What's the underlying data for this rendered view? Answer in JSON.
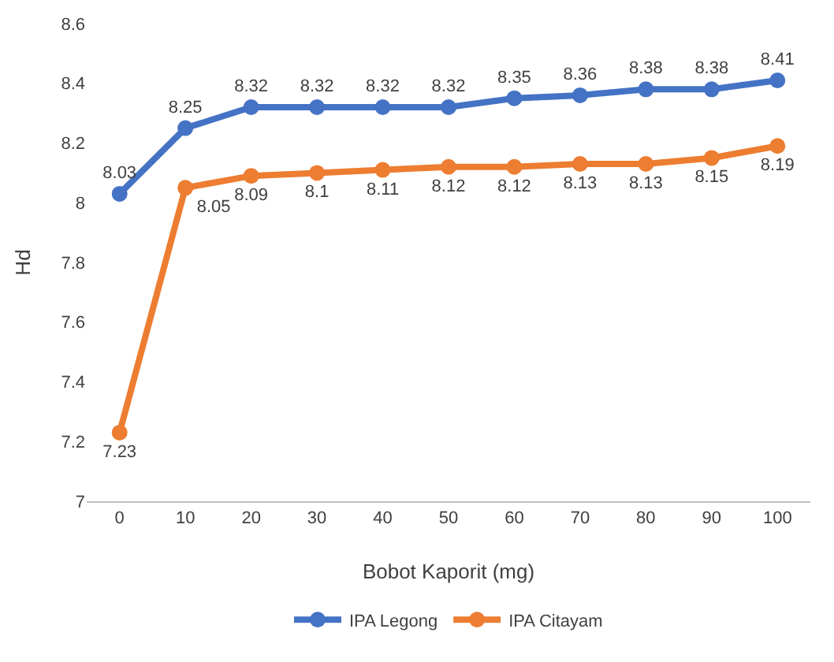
{
  "chart_data": {
    "type": "line",
    "xlabel": "Bobot Kaporit (mg)",
    "ylabel": "Hd",
    "categories": [
      "0",
      "10",
      "20",
      "30",
      "40",
      "50",
      "60",
      "70",
      "80",
      "90",
      "100"
    ],
    "series": [
      {
        "name": "IPA Legong",
        "color": "#4472c4",
        "values": [
          8.03,
          8.25,
          8.32,
          8.32,
          8.32,
          8.32,
          8.35,
          8.36,
          8.38,
          8.38,
          8.41
        ]
      },
      {
        "name": "IPA Citayam",
        "color": "#ed7d31",
        "values": [
          7.23,
          8.05,
          8.09,
          8.1,
          8.11,
          8.12,
          8.12,
          8.13,
          8.13,
          8.15,
          8.19
        ]
      }
    ],
    "ylim": [
      7,
      8.6
    ],
    "yticks": [
      7,
      7.2,
      7.4,
      7.6,
      7.8,
      8,
      8.2,
      8.4,
      8.6
    ],
    "grid": false,
    "legend": "bottom",
    "marker": "circle",
    "line_style": "solid",
    "data_labels": true
  }
}
